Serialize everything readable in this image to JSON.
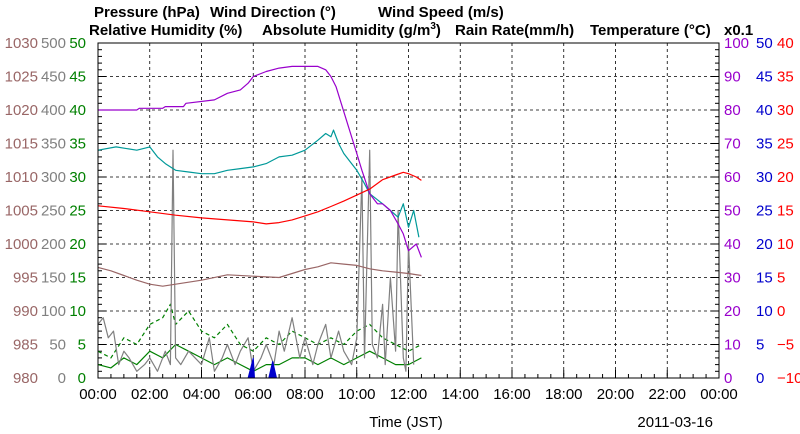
{
  "chart_data": {
    "type": "line",
    "date": "2011-03-16",
    "xlabel": "Time (JST)",
    "x_ticks": [
      "00:00",
      "02:00",
      "04:00",
      "06:00",
      "08:00",
      "10:00",
      "12:00",
      "14:00",
      "16:00",
      "18:00",
      "20:00",
      "22:00",
      "00:00"
    ],
    "xlim_hours": [
      0,
      24
    ],
    "grid": true,
    "legend_top": [
      {
        "label": "Pressure (hPa)",
        "color": "#996666"
      },
      {
        "label": "Wind Direction (°)",
        "color": "#808080"
      },
      {
        "label": "Wind Speed (m/s)",
        "color": "#008000"
      }
    ],
    "legend_second": [
      {
        "label": "Relative Humidity (%)",
        "color": "#9900cc"
      },
      {
        "label": "Absolute Humidity (g/m",
        "sup": "3",
        "tail": ")",
        "color": "#009999"
      },
      {
        "label": "Rain Rate(mm/h)",
        "color": "#0000cc"
      },
      {
        "label": "Temperature (°C)",
        "color": "#ff0000"
      }
    ],
    "abs_humidity_scale_note": "x0.1",
    "axes": {
      "pressure": {
        "label": "Pressure (hPa)",
        "color": "#996666",
        "ticks": [
          "1030",
          "1025",
          "1020",
          "1015",
          "1010",
          "1005",
          "1000",
          "995",
          "990",
          "985",
          "980"
        ],
        "range": [
          980,
          1030
        ]
      },
      "wind_direction": {
        "label": "Wind Direction (°)",
        "color": "#808080",
        "ticks": [
          "500",
          "450",
          "400",
          "350",
          "300",
          "250",
          "200",
          "150",
          "100",
          "50",
          "0"
        ],
        "range": [
          0,
          500
        ]
      },
      "wind_speed": {
        "label": "Wind Speed (m/s)",
        "color": "#008000",
        "ticks": [
          "50",
          "45",
          "40",
          "35",
          "30",
          "25",
          "20",
          "15",
          "10",
          "5",
          "0"
        ],
        "range": [
          0,
          50
        ]
      },
      "humidity": {
        "label": "Humidity (%)",
        "color": "#9900cc",
        "ticks": [
          "100",
          "90",
          "80",
          "70",
          "60",
          "50",
          "40",
          "30",
          "20",
          "10",
          "0"
        ],
        "range": [
          0,
          100
        ]
      },
      "rain_rate": {
        "label": "Rain Rate(mm/h)",
        "color": "#0000cc",
        "ticks": [
          "50",
          "45",
          "40",
          "35",
          "30",
          "25",
          "20",
          "15",
          "10",
          "5",
          "0"
        ],
        "range": [
          0,
          50
        ]
      },
      "temperature": {
        "label": "Temperature (°C)",
        "color": "#ff0000",
        "ticks": [
          "40",
          "35",
          "30",
          "25",
          "20",
          "15",
          "10",
          "5",
          "0",
          "−5",
          "−10"
        ],
        "range": [
          -10,
          40
        ]
      }
    },
    "series": [
      {
        "name": "Relative Humidity (%)",
        "axis": "humidity",
        "color": "#9900cc",
        "x": [
          0,
          1.5,
          1.6,
          2.5,
          2.6,
          3.3,
          3.4,
          4.5,
          5.0,
          5.5,
          5.8,
          6.0,
          6.5,
          7.0,
          7.5,
          8.0,
          8.5,
          8.8,
          9.0,
          9.2,
          9.4,
          9.6,
          9.8,
          10.0,
          10.2,
          10.5,
          10.8,
          11.0,
          11.3,
          11.6,
          11.8,
          12.0,
          12.3,
          12.5
        ],
        "values": [
          80,
          80,
          80.5,
          80.5,
          81,
          81,
          82,
          83,
          85,
          86,
          88,
          90,
          91.5,
          92.5,
          93,
          93,
          93,
          92,
          90,
          87,
          82,
          77,
          72,
          67,
          62,
          55,
          52,
          52,
          50,
          46,
          43,
          38,
          40,
          36
        ]
      },
      {
        "name": "Absolute Humidity x0.1 (g/m3)",
        "axis": "humidity",
        "color": "#009999",
        "x": [
          0,
          0.7,
          1.5,
          2.0,
          2.3,
          2.6,
          3.0,
          3.5,
          4.0,
          4.5,
          5.0,
          5.5,
          6.0,
          6.5,
          7.0,
          7.5,
          8.0,
          8.5,
          8.8,
          9.0,
          9.1,
          9.3,
          9.5,
          9.8,
          10.0,
          10.3,
          10.5,
          11.0,
          11.3,
          11.6,
          11.8,
          12.0,
          12.2,
          12.4
        ],
        "values": [
          68,
          69,
          68,
          69,
          66,
          64,
          62,
          61.5,
          61,
          61,
          62,
          62.5,
          63,
          64,
          66,
          66.5,
          68,
          71,
          73,
          72,
          74,
          70,
          67,
          64,
          62,
          58,
          55,
          52,
          50,
          48,
          52,
          45,
          50,
          42
        ]
      },
      {
        "name": "Temperature (°C)",
        "axis": "temperature",
        "color": "#ff0000",
        "x": [
          0,
          1,
          2,
          3,
          4,
          5,
          6,
          6.5,
          7,
          7.5,
          8,
          8.5,
          9,
          9.5,
          10,
          10.5,
          11,
          11.5,
          11.8,
          12,
          12.3,
          12.5
        ],
        "values": [
          15.7,
          15.3,
          14.8,
          14.3,
          13.9,
          13.6,
          13.3,
          13.0,
          13.2,
          13.6,
          14.2,
          14.8,
          15.6,
          16.4,
          17.3,
          18.2,
          19.6,
          20.3,
          20.7,
          20.5,
          20.0,
          19.5
        ]
      },
      {
        "name": "Pressure (hPa)",
        "axis": "pressure",
        "color": "#996666",
        "x": [
          0,
          0.5,
          1,
          1.5,
          2,
          2.5,
          3,
          4,
          5,
          6,
          7,
          7.5,
          8,
          8.5,
          9,
          9.5,
          10,
          10.5,
          11,
          11.5,
          12,
          12.5
        ],
        "values": [
          996.5,
          996.0,
          995.3,
          994.6,
          994.0,
          993.7,
          994.0,
          994.6,
          995.4,
          995.2,
          995.0,
          995.6,
          996.2,
          996.6,
          997.2,
          997.0,
          996.8,
          996.3,
          996.0,
          995.8,
          995.6,
          995.3
        ]
      },
      {
        "name": "Wind Direction (°)",
        "axis": "wind_direction",
        "color": "#808080",
        "x": [
          0,
          0.2,
          0.4,
          0.6,
          0.8,
          1.0,
          1.2,
          1.5,
          1.8,
          2.0,
          2.3,
          2.6,
          2.8,
          2.9,
          3.0,
          3.2,
          3.5,
          4.0,
          4.3,
          4.5,
          4.8,
          5.0,
          5.3,
          5.5,
          5.8,
          6.0,
          6.3,
          6.5,
          6.8,
          7.0,
          7.2,
          7.5,
          7.8,
          8.0,
          8.3,
          8.5,
          8.8,
          9.0,
          9.3,
          9.5,
          9.8,
          10.0,
          10.2,
          10.3,
          10.5,
          10.6,
          10.8,
          11.0,
          11.1,
          11.3,
          11.5,
          11.6,
          11.8,
          11.9,
          12.0,
          12.2
        ],
        "values": [
          80,
          90,
          60,
          70,
          20,
          40,
          30,
          10,
          20,
          30,
          10,
          40,
          20,
          340,
          30,
          20,
          40,
          20,
          60,
          10,
          30,
          50,
          20,
          40,
          60,
          10,
          30,
          50,
          20,
          70,
          40,
          90,
          30,
          60,
          20,
          50,
          80,
          30,
          70,
          40,
          20,
          60,
          300,
          30,
          340,
          50,
          30,
          110,
          20,
          150,
          40,
          250,
          30,
          10,
          200,
          20
        ]
      },
      {
        "name": "Wind Speed mean (m/s)",
        "axis": "wind_speed",
        "color": "#008000",
        "x": [
          0,
          0.5,
          1,
          1.5,
          2,
          2.5,
          3,
          3.5,
          4,
          4.5,
          5,
          5.5,
          6,
          6.5,
          7,
          7.5,
          8,
          8.5,
          9,
          9.5,
          10,
          10.5,
          11,
          11.5,
          12,
          12.5
        ],
        "values": [
          2,
          1.5,
          3,
          2,
          4,
          3,
          5,
          4,
          3,
          2,
          3,
          2,
          1,
          2,
          2,
          3,
          3,
          2,
          3,
          2,
          3,
          4,
          3,
          2,
          2,
          3
        ]
      },
      {
        "name": "Wind Speed gust (m/s)",
        "axis": "wind_speed",
        "color": "#008000",
        "dashed": true,
        "x": [
          0,
          0.5,
          1,
          1.5,
          2,
          2.5,
          2.8,
          3,
          3.5,
          4,
          4.5,
          5,
          5.5,
          6,
          6.5,
          7,
          7.5,
          8,
          8.5,
          9,
          9.5,
          10,
          10.5,
          11,
          11.5,
          12,
          12.5
        ],
        "values": [
          4,
          3,
          6,
          5,
          8,
          9,
          11,
          8,
          10,
          7,
          6,
          8,
          5,
          4,
          6,
          5,
          7,
          6,
          5,
          6,
          5,
          7,
          8,
          6,
          5,
          4,
          5
        ]
      },
      {
        "name": "Rain Rate (mm/h)",
        "axis": "rain_rate",
        "color": "#0000cc",
        "fill": true,
        "x": [
          5.8,
          6.0,
          6.05,
          6.2,
          6.6,
          6.75,
          6.9
        ],
        "values": [
          0,
          3,
          0,
          0,
          0,
          2.5,
          0
        ]
      }
    ]
  }
}
